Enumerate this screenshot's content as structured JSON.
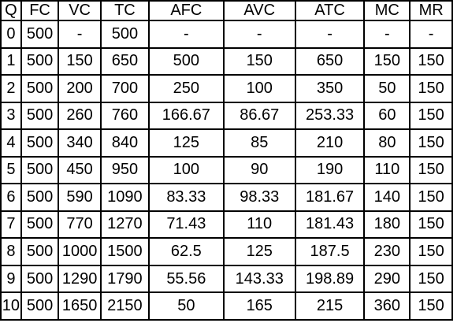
{
  "table": {
    "headers": [
      "Q",
      "FC",
      "VC",
      "TC",
      "AFC",
      "AVC",
      "ATC",
      "MC",
      "MR"
    ],
    "rows": [
      [
        "0",
        "500",
        "-",
        "500",
        "-",
        "-",
        "-",
        "-",
        "-"
      ],
      [
        "1",
        "500",
        "150",
        "650",
        "500",
        "150",
        "650",
        "150",
        "150"
      ],
      [
        "2",
        "500",
        "200",
        "700",
        "250",
        "100",
        "350",
        "50",
        "150"
      ],
      [
        "3",
        "500",
        "260",
        "760",
        "166.67",
        "86.67",
        "253.33",
        "60",
        "150"
      ],
      [
        "4",
        "500",
        "340",
        "840",
        "125",
        "85",
        "210",
        "80",
        "150"
      ],
      [
        "5",
        "500",
        "450",
        "950",
        "100",
        "90",
        "190",
        "110",
        "150"
      ],
      [
        "6",
        "500",
        "590",
        "1090",
        "83.33",
        "98.33",
        "181.67",
        "140",
        "150"
      ],
      [
        "7",
        "500",
        "770",
        "1270",
        "71.43",
        "110",
        "181.43",
        "180",
        "150"
      ],
      [
        "8",
        "500",
        "1000",
        "1500",
        "62.5",
        "125",
        "187.5",
        "230",
        "150"
      ],
      [
        "9",
        "500",
        "1290",
        "1790",
        "55.56",
        "143.33",
        "198.89",
        "290",
        "150"
      ],
      [
        "10",
        "500",
        "1650",
        "2150",
        "50",
        "165",
        "215",
        "360",
        "150"
      ]
    ],
    "bold_row_index": 6,
    "bold_columns_in_row": [
      0,
      7,
      8
    ]
  }
}
